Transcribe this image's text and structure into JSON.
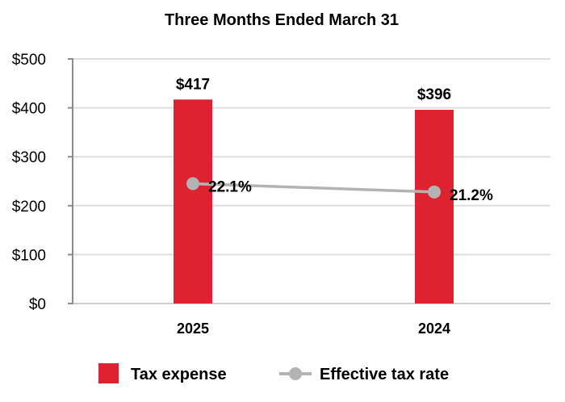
{
  "chart_data": {
    "type": "bar",
    "title": "Three Months Ended March 31",
    "categories": [
      "2025",
      "2024"
    ],
    "ylim": [
      0,
      500
    ],
    "yticks": [
      0,
      100,
      200,
      300,
      400,
      500
    ],
    "ytick_labels": [
      "$0",
      "$100",
      "$200",
      "$300",
      "$400",
      "$500"
    ],
    "grid": true,
    "series": [
      {
        "name": "Tax expense",
        "kind": "bar",
        "color": "#dd2330",
        "values": [
          417,
          396
        ],
        "labels": [
          "$417",
          "$396"
        ]
      },
      {
        "name": "Effective tax rate",
        "kind": "line",
        "color": "#b3b3b3",
        "values": [
          22.1,
          21.2
        ],
        "labels": [
          "22.1%",
          "21.2%"
        ],
        "plotted_at_left_axis": [
          245,
          228
        ]
      }
    ],
    "legend": {
      "position": "bottom",
      "entries": [
        "Tax expense",
        "Effective tax rate"
      ]
    }
  }
}
